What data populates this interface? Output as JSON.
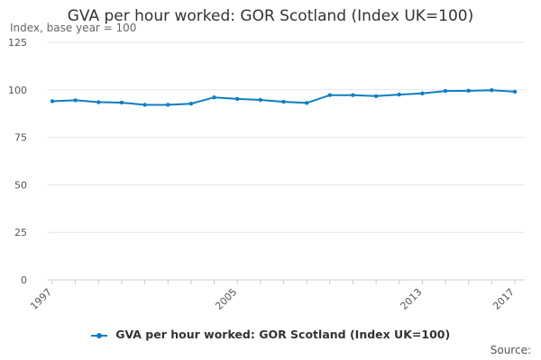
{
  "chart_data": {
    "type": "line",
    "title": "GVA per hour worked: GOR Scotland (Index UK=100)",
    "ylabel": "Index, base year = 100",
    "xlabel": "",
    "ylim": [
      0,
      125
    ],
    "yticks": [
      0,
      25,
      50,
      75,
      100,
      125
    ],
    "xlim": [
      1997,
      2017
    ],
    "xticks": [
      1997,
      2005,
      2013,
      2017
    ],
    "grid": true,
    "legend_position": "bottom",
    "series": [
      {
        "name": "GVA per hour worked: GOR Scotland (Index UK=100)",
        "color": "#0f7dc1",
        "x": [
          1997,
          1998,
          1999,
          2000,
          2001,
          2002,
          2003,
          2004,
          2005,
          2006,
          2007,
          2008,
          2009,
          2010,
          2011,
          2012,
          2013,
          2014,
          2015,
          2016,
          2017
        ],
        "values": [
          94.0,
          94.5,
          93.5,
          93.3,
          92.1,
          92.1,
          92.7,
          96.0,
          95.2,
          94.7,
          93.7,
          93.1,
          97.2,
          97.2,
          96.7,
          97.5,
          98.1,
          99.4,
          99.5,
          99.8,
          99.0
        ]
      }
    ]
  },
  "legend": {
    "label": "GVA per hour worked: GOR Scotland (Index UK=100)"
  },
  "source": "Source:"
}
